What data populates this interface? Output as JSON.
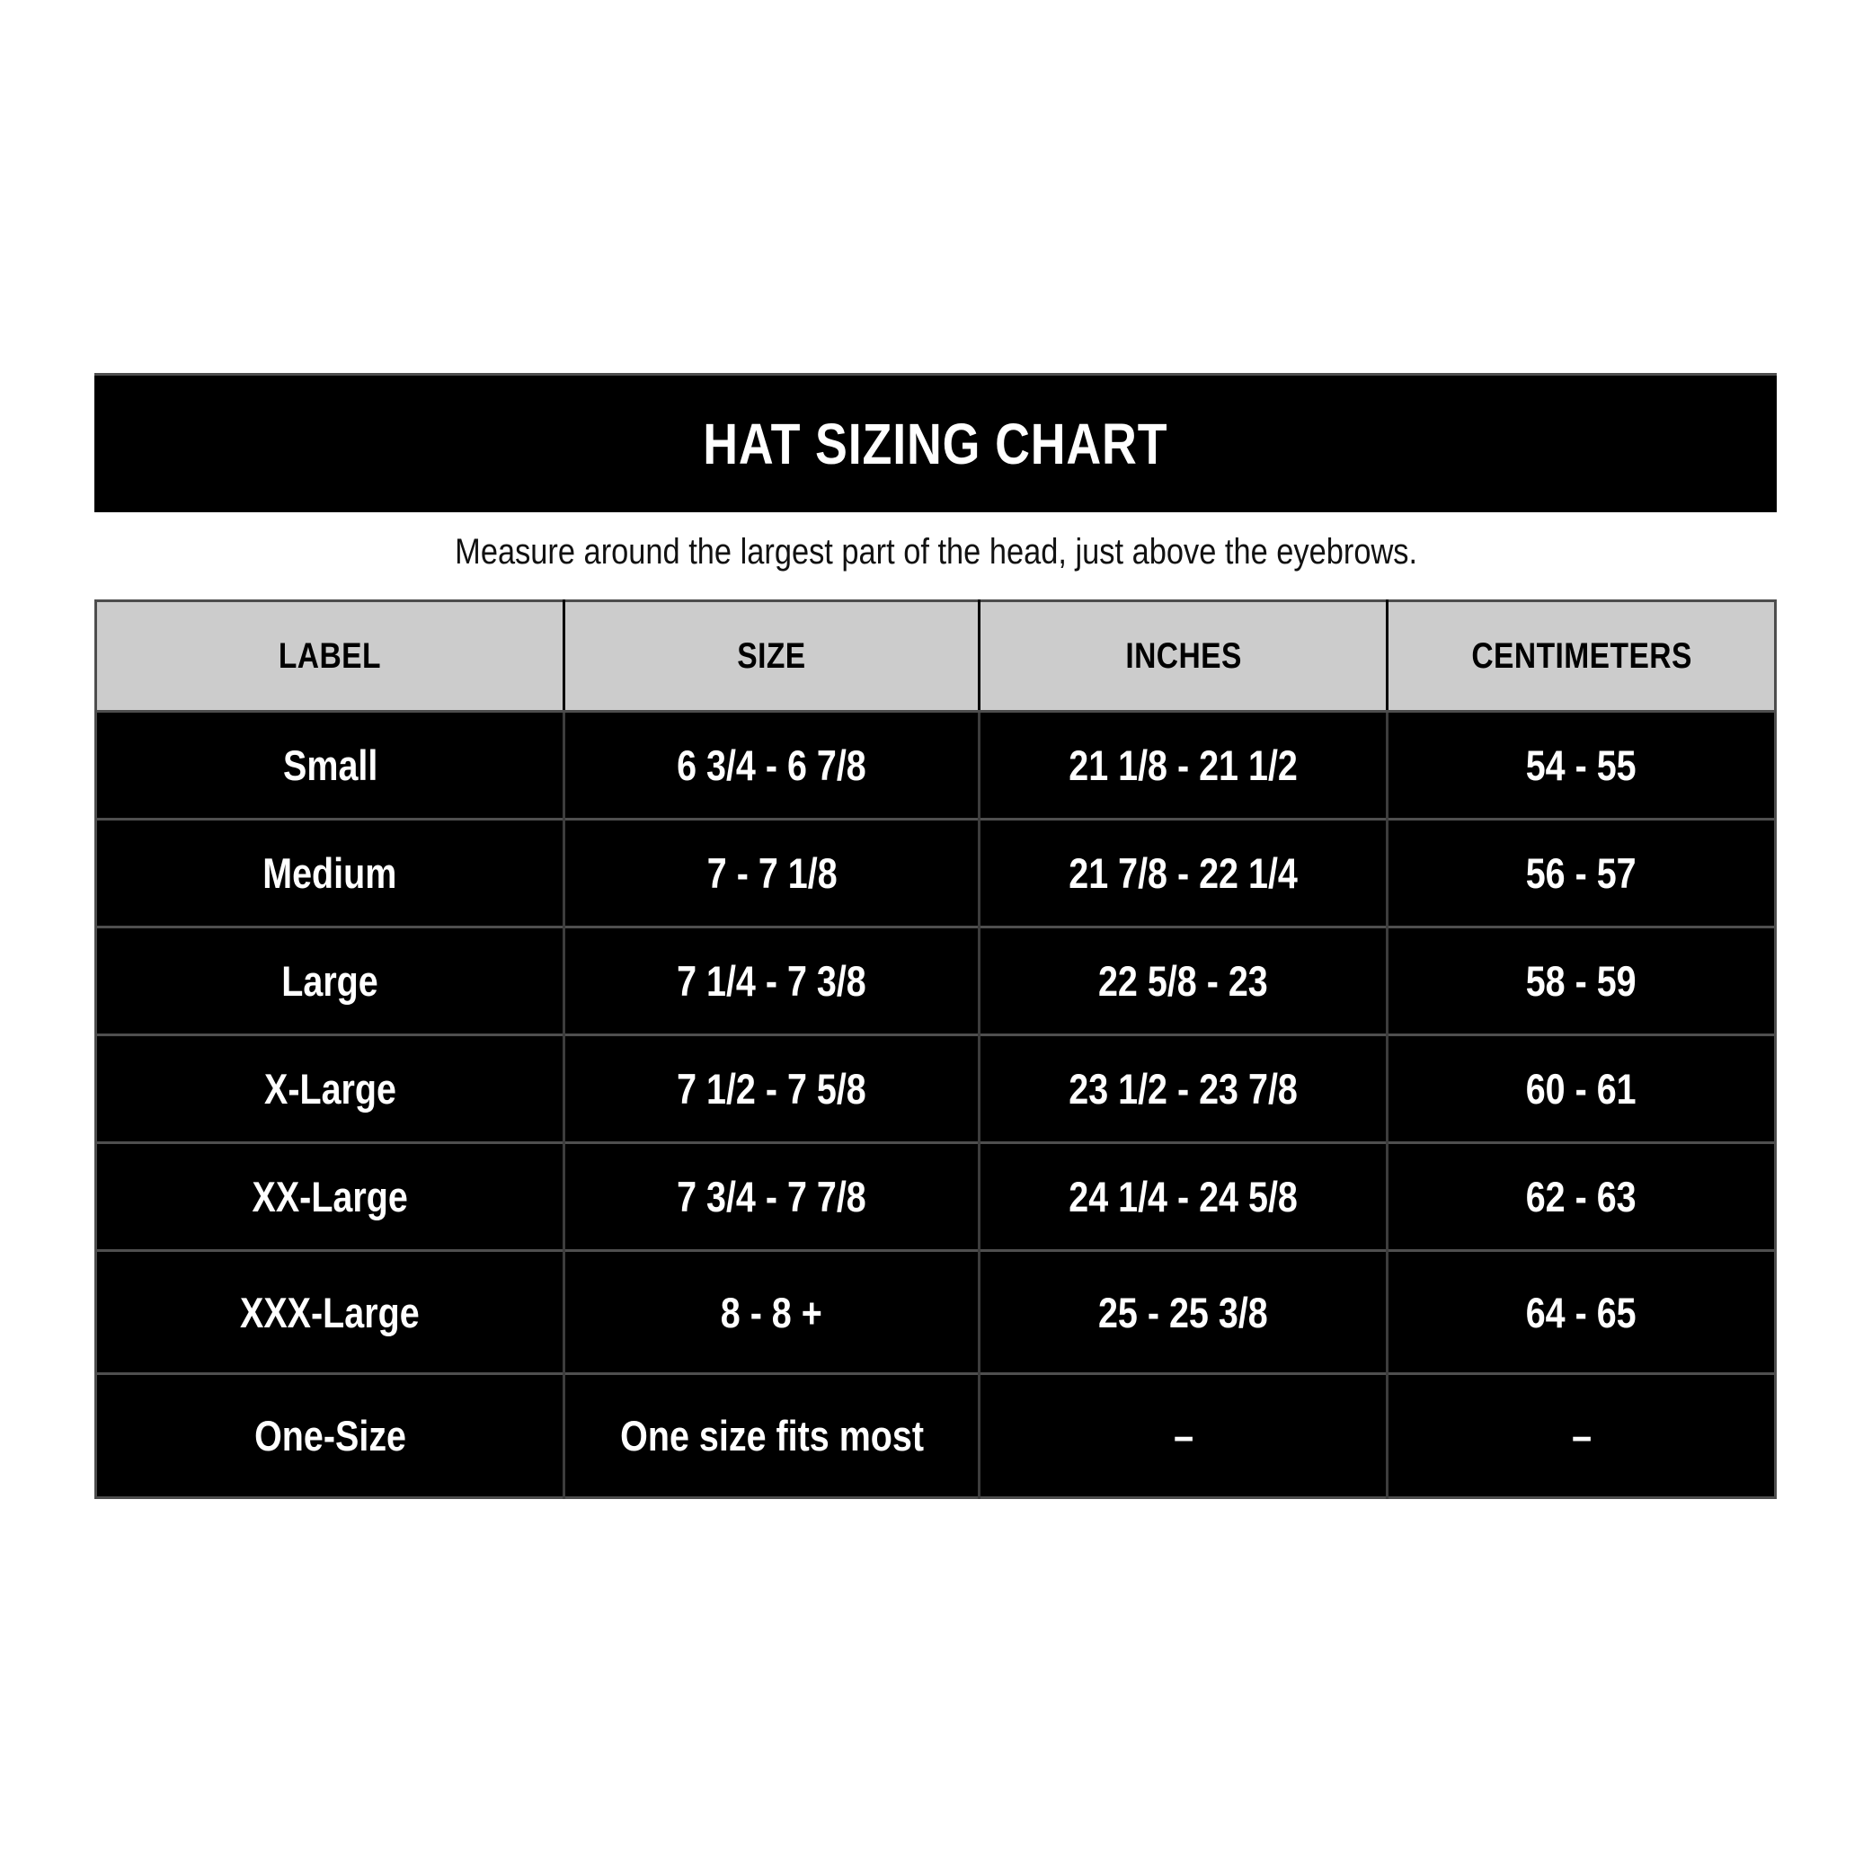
{
  "chart_data": {
    "type": "table",
    "title": "HAT SIZING CHART",
    "subtitle": "Measure around the largest part of the head, just above the eyebrows.",
    "columns": [
      "LABEL",
      "SIZE",
      "INCHES",
      "CENTIMETERS"
    ],
    "rows": [
      [
        "Small",
        "6 3/4 - 6 7/8",
        "21 1/8 - 21 1/2",
        "54 - 55"
      ],
      [
        "Medium",
        "7 - 7 1/8",
        "21 7/8 - 22 1/4",
        "56 - 57"
      ],
      [
        "Large",
        "7 1/4 - 7 3/8",
        "22 5/8 - 23",
        "58 - 59"
      ],
      [
        "X-Large",
        "7 1/2 - 7 5/8",
        "23 1/2 - 23 7/8",
        "60 - 61"
      ],
      [
        "XX-Large",
        "7 3/4 - 7 7/8",
        "24 1/4 - 24 5/8",
        "62 - 63"
      ],
      [
        "XXX-Large",
        "8 - 8 +",
        "25 - 25 3/8",
        "64 - 65"
      ],
      [
        "One-Size",
        "One size fits most",
        "–",
        "–"
      ]
    ]
  },
  "colors": {
    "title_bar_bg": "#000000",
    "title_text": "#ffffff",
    "header_bg": "#cccccc",
    "header_text": "#000000",
    "row_bg": "#000000",
    "row_text": "#ffffff",
    "grid_line": "#4a4a4a",
    "page_bg": "#ffffff"
  }
}
